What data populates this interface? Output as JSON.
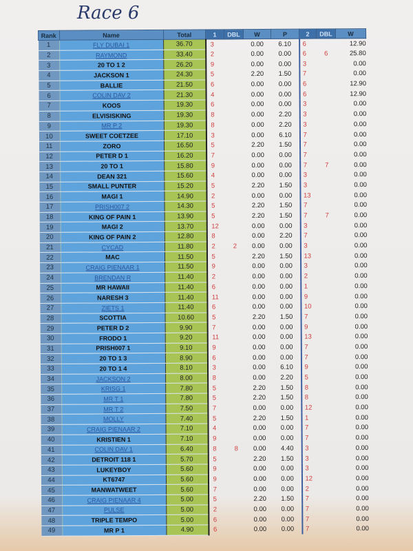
{
  "title": "Race 6",
  "headers": {
    "rank": "Rank",
    "name": "Name",
    "total": "Total",
    "r1": "1",
    "dbl1": "DBL",
    "w1": "W",
    "p1": "P",
    "r2": "2",
    "dbl2": "DBL",
    "w2": "W"
  },
  "rows": [
    [
      "1",
      "FLY DUBAI 1",
      "36.70",
      "3",
      "",
      "0.00",
      "6.10",
      "6",
      "",
      "12.90",
      true
    ],
    [
      "2",
      "RAYMOND",
      "33.40",
      "2",
      "",
      "0.00",
      "0.00",
      "6",
      "6",
      "25.80",
      true
    ],
    [
      "3",
      "20 TO 1  2",
      "26.20",
      "9",
      "",
      "0.00",
      "0.00",
      "3",
      "",
      "0.00",
      false
    ],
    [
      "4",
      "JACKSON 1",
      "24.30",
      "5",
      "",
      "2.20",
      "1.50",
      "7",
      "",
      "0.00",
      false
    ],
    [
      "5",
      "BALLIE",
      "21.50",
      "6",
      "",
      "0.00",
      "0.00",
      "6",
      "",
      "12.90",
      false
    ],
    [
      "6",
      "COLIN DAV 2",
      "21.30",
      "4",
      "",
      "0.00",
      "0.00",
      "6",
      "",
      "12.90",
      true
    ],
    [
      "7",
      "KOOS",
      "19.30",
      "6",
      "",
      "0.00",
      "0.00",
      "3",
      "",
      "0.00",
      false
    ],
    [
      "8",
      "ELVISISKING",
      "19.30",
      "8",
      "",
      "0.00",
      "2.20",
      "3",
      "",
      "0.00",
      false
    ],
    [
      "9",
      "MR P 2",
      "19.30",
      "8",
      "",
      "0.00",
      "2.20",
      "3",
      "",
      "0.00",
      true
    ],
    [
      "10",
      "SWEET COETZEE",
      "17.10",
      "3",
      "",
      "0.00",
      "6.10",
      "7",
      "",
      "0.00",
      false
    ],
    [
      "11",
      "ZORO",
      "16.50",
      "5",
      "",
      "2.20",
      "1.50",
      "7",
      "",
      "0.00",
      false
    ],
    [
      "12",
      "PETER D 1",
      "16.20",
      "7",
      "",
      "0.00",
      "0.00",
      "7",
      "",
      "0.00",
      false
    ],
    [
      "13",
      "20 TO 1",
      "15.80",
      "9",
      "",
      "0.00",
      "0.00",
      "7",
      "7",
      "0.00",
      false
    ],
    [
      "14",
      "DEAN 321",
      "15.60",
      "4",
      "",
      "0.00",
      "0.00",
      "3",
      "",
      "0.00",
      false
    ],
    [
      "15",
      "SMALL PUNTER",
      "15.20",
      "5",
      "",
      "2.20",
      "1.50",
      "3",
      "",
      "0.00",
      false
    ],
    [
      "16",
      "MAGI 1",
      "14.90",
      "2",
      "",
      "0.00",
      "0.00",
      "13",
      "",
      "0.00",
      false
    ],
    [
      "17",
      "PRISH007  2",
      "14.30",
      "5",
      "",
      "2.20",
      "1.50",
      "7",
      "",
      "0.00",
      true
    ],
    [
      "18",
      "KING OF PAIN 1",
      "13.90",
      "5",
      "",
      "2.20",
      "1.50",
      "7",
      "7",
      "0.00",
      false
    ],
    [
      "19",
      "MAGI 2",
      "13.70",
      "12",
      "",
      "0.00",
      "0.00",
      "3",
      "",
      "0.00",
      false
    ],
    [
      "20",
      "KING OF PAIN 2",
      "12.80",
      "8",
      "",
      "0.00",
      "2.20",
      "7",
      "",
      "0.00",
      false
    ],
    [
      "21",
      "CYCAD",
      "11.80",
      "2",
      "2",
      "0.00",
      "0.00",
      "3",
      "",
      "0.00",
      true
    ],
    [
      "22",
      "MAC",
      "11.50",
      "5",
      "",
      "2.20",
      "1.50",
      "13",
      "",
      "0.00",
      false
    ],
    [
      "23",
      "CRAIG PIENAAR 1",
      "11.50",
      "9",
      "",
      "0.00",
      "0.00",
      "3",
      "",
      "0.00",
      true
    ],
    [
      "24",
      "BRENDAN R",
      "11.40",
      "2",
      "",
      "0.00",
      "0.00",
      "2",
      "",
      "0.00",
      true
    ],
    [
      "25",
      "MR HAWAII",
      "11.40",
      "6",
      "",
      "0.00",
      "0.00",
      "1",
      "",
      "0.00",
      false
    ],
    [
      "26",
      "NARESH 3",
      "11.40",
      "11",
      "",
      "0.00",
      "0.00",
      "9",
      "",
      "0.00",
      false
    ],
    [
      "27",
      "ZIETS 1",
      "11.40",
      "6",
      "",
      "0.00",
      "0.00",
      "10",
      "",
      "0.00",
      true
    ],
    [
      "28",
      "SCOTTIA",
      "10.60",
      "5",
      "",
      "2.20",
      "1.50",
      "7",
      "",
      "0.00",
      false
    ],
    [
      "29",
      "PETER D 2",
      "9.90",
      "7",
      "",
      "0.00",
      "0.00",
      "9",
      "",
      "0.00",
      false
    ],
    [
      "30",
      "FRODO 1",
      "9.20",
      "11",
      "",
      "0.00",
      "0.00",
      "13",
      "",
      "0.00",
      false
    ],
    [
      "31",
      "PRISH007  1",
      "9.10",
      "9",
      "",
      "0.00",
      "0.00",
      "7",
      "",
      "0.00",
      false
    ],
    [
      "32",
      "20 TO 1 3",
      "8.90",
      "6",
      "",
      "0.00",
      "0.00",
      "7",
      "",
      "0.00",
      false
    ],
    [
      "33",
      "20 TO 1  4",
      "8.10",
      "3",
      "",
      "0.00",
      "6.10",
      "9",
      "",
      "0.00",
      false
    ],
    [
      "34",
      "JACKSON 2",
      "8.00",
      "8",
      "",
      "0.00",
      "2.20",
      "5",
      "",
      "0.00",
      true
    ],
    [
      "35",
      "KRISG  1",
      "7.80",
      "5",
      "",
      "2.20",
      "1.50",
      "8",
      "",
      "0.00",
      true
    ],
    [
      "36",
      "MR T  1",
      "7.80",
      "5",
      "",
      "2.20",
      "1.50",
      "8",
      "",
      "0.00",
      true
    ],
    [
      "37",
      "MR T  2",
      "7.50",
      "7",
      "",
      "0.00",
      "0.00",
      "12",
      "",
      "0.00",
      true
    ],
    [
      "38",
      "MOLLY",
      "7.40",
      "5",
      "",
      "2.20",
      "1.50",
      "1",
      "",
      "0.00",
      true
    ],
    [
      "39",
      "CRAIG PIENAAR 2",
      "7.10",
      "4",
      "",
      "0.00",
      "0.00",
      "7",
      "",
      "0.00",
      true
    ],
    [
      "40",
      "KRISTIEN 1",
      "7.10",
      "9",
      "",
      "0.00",
      "0.00",
      "7",
      "",
      "0.00",
      false
    ],
    [
      "41",
      "COLIN DAV 1",
      "6.40",
      "8",
      "8",
      "0.00",
      "4.40",
      "3",
      "",
      "0.00",
      true
    ],
    [
      "42",
      "DETROIT 118 1",
      "5.70",
      "5",
      "",
      "2.20",
      "1.50",
      "3",
      "",
      "0.00",
      false
    ],
    [
      "43",
      "LUKEYBOY",
      "5.60",
      "9",
      "",
      "0.00",
      "0.00",
      "3",
      "",
      "0.00",
      false
    ],
    [
      "44",
      "KT6747",
      "5.60",
      "9",
      "",
      "0.00",
      "0.00",
      "12",
      "",
      "0.00",
      false
    ],
    [
      "45",
      "MANWATWEET",
      "5.60",
      "7",
      "",
      "0.00",
      "0.00",
      "2",
      "",
      "0.00",
      false
    ],
    [
      "46",
      "CRAIG PIENAAR 4",
      "5.00",
      "5",
      "",
      "2.20",
      "1.50",
      "7",
      "",
      "0.00",
      true
    ],
    [
      "47",
      "PULSE",
      "5.00",
      "2",
      "",
      "0.00",
      "0.00",
      "7",
      "",
      "0.00",
      true
    ],
    [
      "48",
      "TRIPLE TEMPO",
      "5.00",
      "6",
      "",
      "0.00",
      "0.00",
      "7",
      "",
      "0.00",
      false
    ],
    [
      "49",
      "MR P 1",
      "4.90",
      "6",
      "",
      "0.00",
      "0.00",
      "7",
      "",
      "0.00",
      false
    ]
  ]
}
